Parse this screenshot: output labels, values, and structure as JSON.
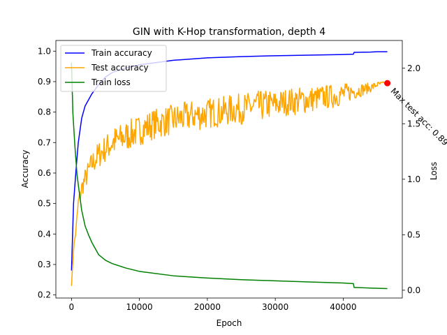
{
  "chart_data": {
    "type": "line",
    "title": "GIN with K-Hop transformation, depth 4",
    "xlabel": "Epoch",
    "ylabel": "Accuracy",
    "y2label": "Loss",
    "xlim": [
      -2300,
      48700
    ],
    "ylim": [
      0.19,
      1.035
    ],
    "y2lim": [
      -0.07,
      2.25
    ],
    "x_ticks": [
      0,
      10000,
      20000,
      30000,
      40000
    ],
    "x_tick_labels": [
      "0",
      "10000",
      "20000",
      "30000",
      "40000"
    ],
    "y_ticks": [
      0.2,
      0.3,
      0.4,
      0.5,
      0.6,
      0.7,
      0.8,
      0.9,
      1.0
    ],
    "y_tick_labels": [
      "0.2",
      "0.3",
      "0.4",
      "0.5",
      "0.6",
      "0.7",
      "0.8",
      "0.9",
      "1.0"
    ],
    "y2_ticks": [
      0.0,
      0.5,
      1.0,
      1.5,
      2.0
    ],
    "y2_tick_labels": [
      "0.0",
      "0.5",
      "1.0",
      "1.5",
      "2.0"
    ],
    "grid": false,
    "legend_position": "top-left",
    "series": [
      {
        "name": "Train accuracy",
        "color": "#0000ff",
        "axis": "left",
        "x": [
          0,
          300,
          700,
          1000,
          1500,
          2000,
          3000,
          4000,
          5000,
          6000,
          8000,
          10000,
          15000,
          20000,
          25000,
          30000,
          35000,
          40000,
          41500,
          41600,
          44000,
          45000,
          46500
        ],
        "y": [
          0.28,
          0.5,
          0.62,
          0.7,
          0.78,
          0.82,
          0.86,
          0.89,
          0.915,
          0.93,
          0.945,
          0.955,
          0.97,
          0.978,
          0.982,
          0.985,
          0.987,
          0.989,
          0.99,
          0.996,
          0.997,
          0.998,
          0.998
        ]
      },
      {
        "name": "Test accuracy",
        "color": "#ffa500",
        "axis": "left",
        "x": [
          0,
          300,
          700,
          1000,
          1500,
          2000,
          3000,
          4000,
          5000,
          6000,
          7000,
          8000,
          9000,
          10000,
          11000,
          12000,
          13000,
          14000,
          15000,
          16000,
          17000,
          18000,
          19000,
          20000,
          21000,
          22000,
          23000,
          24000,
          25000,
          26000,
          27000,
          28000,
          29000,
          30000,
          31000,
          32000,
          33000,
          34000,
          35000,
          36000,
          37000,
          38000,
          39000,
          40000,
          41000,
          42000,
          43000,
          44000,
          45000,
          46000,
          46500
        ],
        "y": [
          0.23,
          0.35,
          0.42,
          0.5,
          0.55,
          0.58,
          0.63,
          0.66,
          0.68,
          0.7,
          0.71,
          0.72,
          0.73,
          0.74,
          0.75,
          0.76,
          0.765,
          0.77,
          0.775,
          0.78,
          0.785,
          0.79,
          0.79,
          0.795,
          0.8,
          0.8,
          0.805,
          0.81,
          0.81,
          0.815,
          0.82,
          0.82,
          0.825,
          0.825,
          0.83,
          0.835,
          0.835,
          0.84,
          0.84,
          0.845,
          0.85,
          0.85,
          0.855,
          0.86,
          0.865,
          0.87,
          0.875,
          0.88,
          0.89,
          0.895,
          0.895
        ],
        "noise_amplitude": [
          0,
          0.01,
          0.02,
          0.03,
          0.03,
          0.035,
          0.04,
          0.045,
          0.045,
          0.05,
          0.05,
          0.05,
          0.05,
          0.05,
          0.05,
          0.05,
          0.05,
          0.05,
          0.05,
          0.05,
          0.05,
          0.05,
          0.05,
          0.05,
          0.05,
          0.05,
          0.05,
          0.05,
          0.05,
          0.05,
          0.05,
          0.05,
          0.05,
          0.045,
          0.045,
          0.045,
          0.045,
          0.045,
          0.045,
          0.04,
          0.04,
          0.04,
          0.04,
          0.035,
          0.03,
          0.025,
          0.02,
          0.015,
          0.01,
          0.005,
          0.0
        ]
      },
      {
        "name": "Train loss",
        "color": "#008000",
        "axis": "right",
        "x": [
          0,
          200,
          500,
          800,
          1000,
          1500,
          2000,
          2500,
          3000,
          4000,
          5000,
          6000,
          8000,
          10000,
          15000,
          20000,
          25000,
          30000,
          35000,
          40000,
          41500,
          41600,
          44000,
          46500
        ],
        "y": [
          2.05,
          1.6,
          1.3,
          1.05,
          0.95,
          0.72,
          0.58,
          0.5,
          0.43,
          0.32,
          0.27,
          0.24,
          0.2,
          0.17,
          0.13,
          0.11,
          0.095,
          0.085,
          0.075,
          0.065,
          0.06,
          0.025,
          0.02,
          0.015
        ]
      }
    ],
    "max_marker": {
      "x": 46500,
      "y": 0.895,
      "color": "#ff0000",
      "label": "Max test acc: 0.89"
    }
  }
}
